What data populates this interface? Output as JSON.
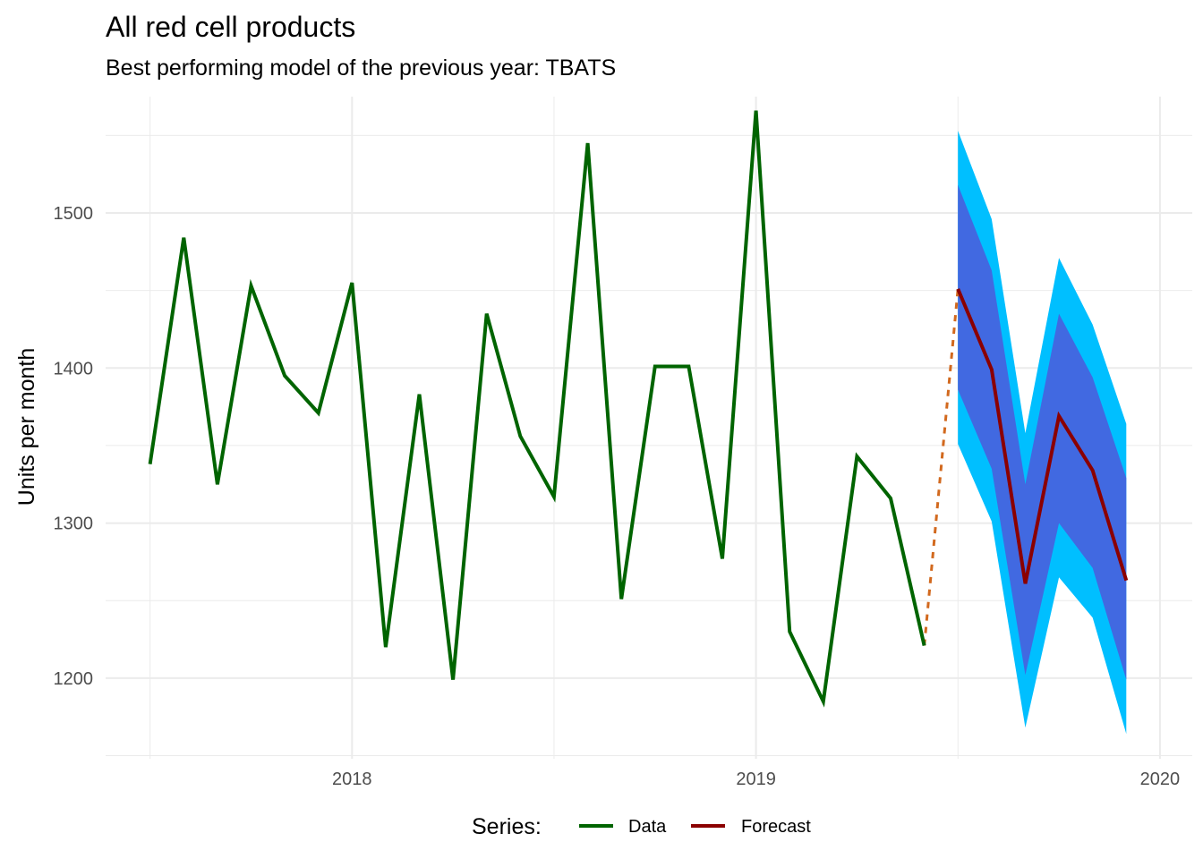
{
  "chart_data": {
    "type": "line",
    "title": "All red cell products",
    "subtitle": "Best performing model of the previous year: TBATS",
    "xlabel": "",
    "ylabel": "Units per month",
    "xlim": [
      2017.39,
      2020.08
    ],
    "ylim": [
      1148,
      1575
    ],
    "x_ticks": [
      2018,
      2019,
      2020
    ],
    "x_tick_labels": [
      "2018",
      "2019",
      "2020"
    ],
    "y_ticks": [
      1200,
      1300,
      1400,
      1500
    ],
    "y_tick_labels": [
      "1200",
      "1300",
      "1400",
      "1500"
    ],
    "grid": true,
    "legend": {
      "title": "Series:",
      "position": "bottom",
      "entries": [
        "Data",
        "Forecast"
      ]
    },
    "colors": {
      "data": "#006400",
      "forecast": "#8b0000",
      "connector": "#d2691e",
      "interval_95": "#00bfff",
      "interval_80": "#4169e1"
    },
    "series": [
      {
        "name": "Data",
        "x": [
          "2017-07",
          "2017-08",
          "2017-09",
          "2017-10",
          "2017-11",
          "2017-12",
          "2018-01",
          "2018-02",
          "2018-03",
          "2018-04",
          "2018-05",
          "2018-06",
          "2018-07",
          "2018-08",
          "2018-09",
          "2018-10",
          "2018-11",
          "2018-12",
          "2019-01",
          "2019-02",
          "2019-03",
          "2019-04",
          "2019-05",
          "2019-06"
        ],
        "values": [
          1338,
          1484,
          1325,
          1453,
          1395,
          1371,
          1455,
          1220,
          1383,
          1199,
          1435,
          1356,
          1317,
          1545,
          1251,
          1401,
          1401,
          1277,
          1566,
          1230,
          1185,
          1343,
          1316,
          1221
        ]
      },
      {
        "name": "Forecast",
        "x": [
          "2019-07",
          "2019-08",
          "2019-09",
          "2019-10",
          "2019-11",
          "2019-12"
        ],
        "values": [
          1451,
          1399,
          1261,
          1369,
          1334,
          1263
        ],
        "lo80": [
          1386,
          1335,
          1202,
          1300,
          1271,
          1199
        ],
        "hi80": [
          1518,
          1463,
          1325,
          1435,
          1394,
          1329
        ],
        "lo95": [
          1351,
          1301,
          1168,
          1265,
          1239,
          1164
        ],
        "hi95": [
          1553,
          1496,
          1358,
          1471,
          1428,
          1364
        ]
      }
    ]
  }
}
